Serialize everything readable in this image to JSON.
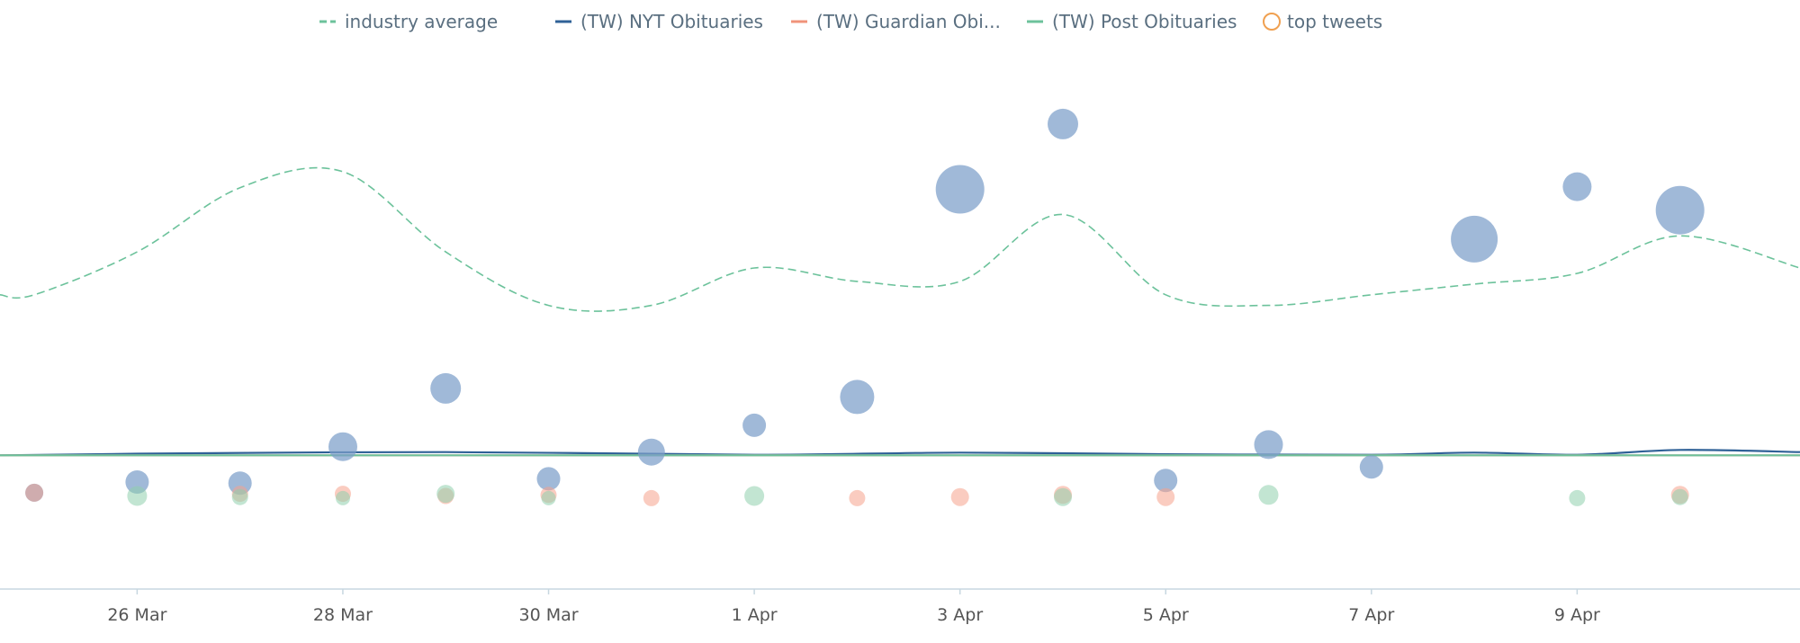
{
  "chart_data": {
    "type": "line",
    "title": "",
    "xlabel": "",
    "ylabel": "",
    "x_axis": {
      "type": "date",
      "range": [
        "2024-03-24T16:00",
        "2024-04-11T04:00"
      ],
      "ticks": [
        {
          "date": "2024-03-26",
          "label": "26 Mar"
        },
        {
          "date": "2024-03-28",
          "label": "28 Mar"
        },
        {
          "date": "2024-03-30",
          "label": "30 Mar"
        },
        {
          "date": "2024-04-01",
          "label": "1 Apr"
        },
        {
          "date": "2024-04-03",
          "label": "3 Apr"
        },
        {
          "date": "2024-04-05",
          "label": "5 Apr"
        },
        {
          "date": "2024-04-07",
          "label": "7 Apr"
        },
        {
          "date": "2024-04-09",
          "label": "9 Apr"
        }
      ]
    },
    "y_axis": {
      "range": [
        0,
        100
      ],
      "labels_visible": false
    },
    "grid": false,
    "legend": {
      "position": "top-center"
    },
    "series": [
      {
        "name": "industry average",
        "kind": "line",
        "style": "dashed",
        "color": "#6cc29b",
        "points": [
          {
            "x": "2024-03-24T16:00",
            "y": 55
          },
          {
            "x": "2024-03-25",
            "y": 55
          },
          {
            "x": "2024-03-26",
            "y": 63
          },
          {
            "x": "2024-03-27",
            "y": 75
          },
          {
            "x": "2024-03-28",
            "y": 78
          },
          {
            "x": "2024-03-29",
            "y": 63
          },
          {
            "x": "2024-03-30",
            "y": 53
          },
          {
            "x": "2024-03-31",
            "y": 53
          },
          {
            "x": "2024-04-01",
            "y": 60
          },
          {
            "x": "2024-04-02",
            "y": 57.5
          },
          {
            "x": "2024-04-03",
            "y": 57.5
          },
          {
            "x": "2024-04-04",
            "y": 70
          },
          {
            "x": "2024-04-05",
            "y": 55
          },
          {
            "x": "2024-04-06",
            "y": 53
          },
          {
            "x": "2024-04-07",
            "y": 55
          },
          {
            "x": "2024-04-08",
            "y": 57
          },
          {
            "x": "2024-04-09",
            "y": 59
          },
          {
            "x": "2024-04-10",
            "y": 66
          },
          {
            "x": "2024-04-11T04:00",
            "y": 60
          }
        ]
      },
      {
        "name": "(TW) NYT Obituaries",
        "kind": "line",
        "style": "solid",
        "color": "#2f6197",
        "points": [
          {
            "x": "2024-03-24T16:00",
            "y": 25
          },
          {
            "x": "2024-03-26",
            "y": 25.3
          },
          {
            "x": "2024-03-29",
            "y": 25.6
          },
          {
            "x": "2024-04-01",
            "y": 25.1
          },
          {
            "x": "2024-04-03",
            "y": 25.5
          },
          {
            "x": "2024-04-05",
            "y": 25.2
          },
          {
            "x": "2024-04-07",
            "y": 25.1
          },
          {
            "x": "2024-04-08",
            "y": 25.5
          },
          {
            "x": "2024-04-09",
            "y": 25.1
          },
          {
            "x": "2024-04-10",
            "y": 26.0
          },
          {
            "x": "2024-04-11T04:00",
            "y": 25.6
          }
        ]
      },
      {
        "name": "(TW) Guardian Obi...",
        "kind": "line",
        "style": "solid",
        "color": "#f0937a",
        "points": [
          {
            "x": "2024-03-24T16:00",
            "y": 25
          },
          {
            "x": "2024-04-11T04:00",
            "y": 25
          }
        ]
      },
      {
        "name": "(TW) Post Obituaries",
        "kind": "line",
        "style": "solid",
        "color": "#6cc29b",
        "points": [
          {
            "x": "2024-03-24T16:00",
            "y": 25
          },
          {
            "x": "2024-04-11T04:00",
            "y": 25
          }
        ]
      },
      {
        "name": "top tweets",
        "kind": "bubble",
        "color": "#f0a050",
        "groups": [
          {
            "color": "#7c9ec9",
            "points": [
              {
                "x": "2024-03-25",
                "y": 18,
                "size": 10
              },
              {
                "x": "2024-03-26",
                "y": 20,
                "size": 13
              },
              {
                "x": "2024-03-27",
                "y": 19.8,
                "size": 13
              },
              {
                "x": "2024-03-28",
                "y": 26.6,
                "size": 16
              },
              {
                "x": "2024-03-29",
                "y": 37.5,
                "size": 17
              },
              {
                "x": "2024-03-30",
                "y": 20.6,
                "size": 13
              },
              {
                "x": "2024-03-31",
                "y": 25.6,
                "size": 15
              },
              {
                "x": "2024-04-01",
                "y": 30.6,
                "size": 13
              },
              {
                "x": "2024-04-02",
                "y": 35.9,
                "size": 19
              },
              {
                "x": "2024-04-03",
                "y": 74.7,
                "size": 27
              },
              {
                "x": "2024-04-04",
                "y": 86.9,
                "size": 17
              },
              {
                "x": "2024-04-05",
                "y": 20.3,
                "size": 13
              },
              {
                "x": "2024-04-06",
                "y": 27.0,
                "size": 16
              },
              {
                "x": "2024-04-07",
                "y": 22.8,
                "size": 13
              },
              {
                "x": "2024-04-08",
                "y": 65.4,
                "size": 26
              },
              {
                "x": "2024-04-09",
                "y": 75.2,
                "size": 16
              },
              {
                "x": "2024-04-10",
                "y": 70.8,
                "size": 27
              }
            ]
          },
          {
            "color": "#f6a38c",
            "points": [
              {
                "x": "2024-03-25",
                "y": 18.0,
                "size": 10
              },
              {
                "x": "2024-03-27",
                "y": 17.8,
                "size": 9
              },
              {
                "x": "2024-03-28",
                "y": 17.8,
                "size": 9
              },
              {
                "x": "2024-03-29",
                "y": 17.4,
                "size": 9
              },
              {
                "x": "2024-03-30",
                "y": 17.6,
                "size": 9
              },
              {
                "x": "2024-03-31",
                "y": 17.0,
                "size": 9
              },
              {
                "x": "2024-04-02",
                "y": 17.0,
                "size": 9
              },
              {
                "x": "2024-04-03",
                "y": 17.2,
                "size": 10
              },
              {
                "x": "2024-04-04",
                "y": 17.6,
                "size": 10
              },
              {
                "x": "2024-04-05",
                "y": 17.2,
                "size": 10
              },
              {
                "x": "2024-04-10",
                "y": 17.6,
                "size": 10
              }
            ]
          },
          {
            "color": "#8fd0ad",
            "points": [
              {
                "x": "2024-03-26",
                "y": 17.4,
                "size": 11
              },
              {
                "x": "2024-03-27",
                "y": 17.2,
                "size": 9
              },
              {
                "x": "2024-03-28",
                "y": 17.0,
                "size": 8
              },
              {
                "x": "2024-03-29",
                "y": 17.8,
                "size": 10
              },
              {
                "x": "2024-03-30",
                "y": 17.0,
                "size": 8
              },
              {
                "x": "2024-04-01",
                "y": 17.4,
                "size": 11
              },
              {
                "x": "2024-04-04",
                "y": 17.2,
                "size": 10
              },
              {
                "x": "2024-04-06",
                "y": 17.6,
                "size": 11
              },
              {
                "x": "2024-04-09",
                "y": 17.0,
                "size": 9
              },
              {
                "x": "2024-04-10",
                "y": 17.2,
                "size": 9
              }
            ]
          }
        ]
      }
    ]
  }
}
